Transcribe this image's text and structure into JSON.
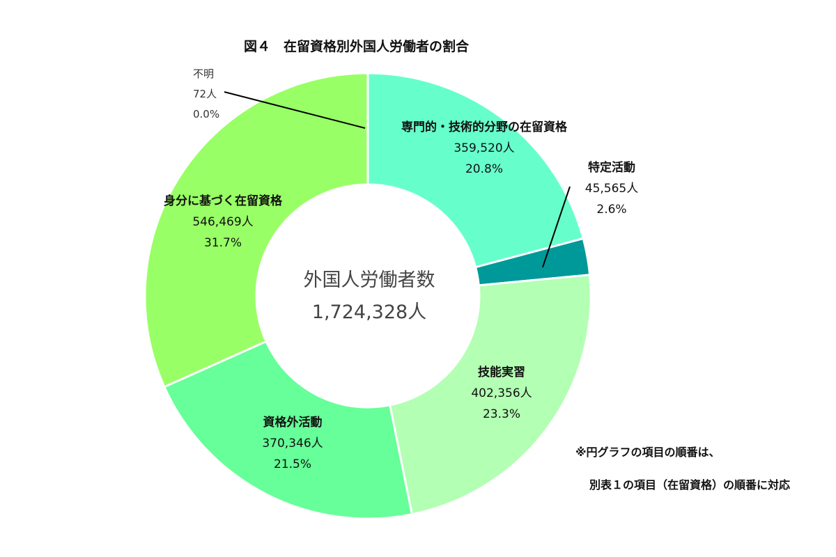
{
  "chart_data": {
    "type": "pie",
    "variant": "donut",
    "title": "図４　在留資格別外国人労働者の割合",
    "center": {
      "label": "外国人労働者数",
      "total": "1,724,328人"
    },
    "slices": [
      {
        "name": "専門的・技術的分野の在留資格",
        "count": "359,520人",
        "value": 359520,
        "pct": "20.8%",
        "color": "#66ffcc"
      },
      {
        "name": "特定活動",
        "count": "45,565人",
        "value": 45565,
        "pct": "2.6%",
        "color": "#009999"
      },
      {
        "name": "技能実習",
        "count": "402,356人",
        "value": 402356,
        "pct": "23.3%",
        "color": "#b3ffb3"
      },
      {
        "name": "資格外活動",
        "count": "370,346人",
        "value": 370346,
        "pct": "21.5%",
        "color": "#66ff99"
      },
      {
        "name": "身分に基づく在留資格",
        "count": "546,469人",
        "value": 546469,
        "pct": "31.7%",
        "color": "#99ff66"
      },
      {
        "name": "不明",
        "count": "72人",
        "value": 72,
        "pct": "0.0%",
        "color": "#99ff66"
      }
    ],
    "legend": "none"
  },
  "notes": [
    "※円グラフの項目の順番は、",
    "別表１の項目（在留資格）の順番に対応"
  ]
}
